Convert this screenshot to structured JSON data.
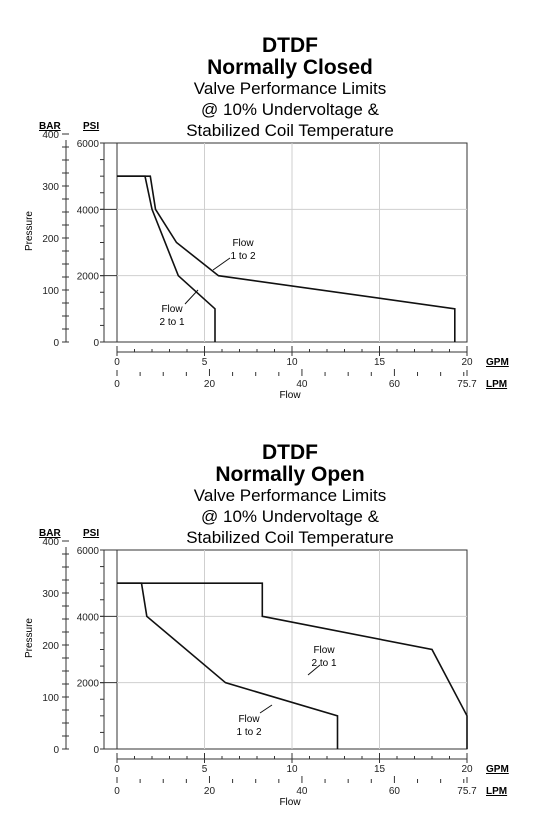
{
  "chart_data": [
    {
      "type": "line",
      "title": "DTDF",
      "subtitle": "Normally Closed",
      "caption_lines": [
        "Valve Performance Limits",
        "@ 10% Undervoltage &",
        "Stabilized Coil Temperature"
      ],
      "ylabel": "Pressure",
      "xlabel": "Flow",
      "bar_unit": "BAR",
      "psi_unit": "PSI",
      "gpm_unit": "GPM",
      "lpm_unit": "LPM",
      "psi_ticks": [
        "0",
        "2000",
        "4000",
        "6000"
      ],
      "bar_ticks": [
        "0",
        "100",
        "200",
        "300",
        "400"
      ],
      "gpm_ticks": [
        "0",
        "5",
        "10",
        "15",
        "20"
      ],
      "lpm_ticks": [
        "0",
        "20",
        "40",
        "60",
        "75.7"
      ],
      "xlim": [
        0,
        20
      ],
      "ylim": [
        0,
        6000
      ],
      "grid": true,
      "series": [
        {
          "name": "Flow\n1 to 2",
          "label_lines": [
            "Flow",
            "1 to 2"
          ],
          "x": [
            0,
            1.9,
            2.2,
            3.4,
            5.8,
            19.3,
            19.3
          ],
          "y": [
            5000,
            5000,
            4000,
            3000,
            2000,
            1000,
            0
          ]
        },
        {
          "name": "Flow\n2 to 1",
          "label_lines": [
            "Flow",
            "2 to 1"
          ],
          "x": [
            0,
            1.6,
            2.0,
            3.5,
            5.6,
            5.6
          ],
          "y": [
            5000,
            5000,
            4000,
            2000,
            1000,
            0
          ]
        }
      ]
    },
    {
      "type": "line",
      "title": "DTDF",
      "subtitle": "Normally Open",
      "caption_lines": [
        "Valve Performance Limits",
        "@ 10% Undervoltage &",
        "Stabilized Coil Temperature"
      ],
      "ylabel": "Pressure",
      "xlabel": "Flow",
      "bar_unit": "BAR",
      "psi_unit": "PSI",
      "gpm_unit": "GPM",
      "lpm_unit": "LPM",
      "psi_ticks": [
        "0",
        "2000",
        "4000",
        "6000"
      ],
      "bar_ticks": [
        "0",
        "100",
        "200",
        "300",
        "400"
      ],
      "gpm_ticks": [
        "0",
        "5",
        "10",
        "15",
        "20"
      ],
      "lpm_ticks": [
        "0",
        "20",
        "40",
        "60",
        "75.7"
      ],
      "xlim": [
        0,
        20
      ],
      "ylim": [
        0,
        6000
      ],
      "grid": true,
      "series": [
        {
          "name": "Flow\n2 to 1",
          "label_lines": [
            "Flow",
            "2 to 1"
          ],
          "x": [
            0,
            8.3,
            8.3,
            18.0,
            20.0,
            20.0
          ],
          "y": [
            5000,
            5000,
            4000,
            3000,
            1000,
            0
          ]
        },
        {
          "name": "Flow\n1 to 2",
          "label_lines": [
            "Flow",
            "1 to 2"
          ],
          "x": [
            0,
            1.4,
            1.7,
            6.2,
            12.6,
            12.6
          ],
          "y": [
            5000,
            5000,
            4000,
            2000,
            1000,
            0
          ]
        }
      ]
    }
  ]
}
